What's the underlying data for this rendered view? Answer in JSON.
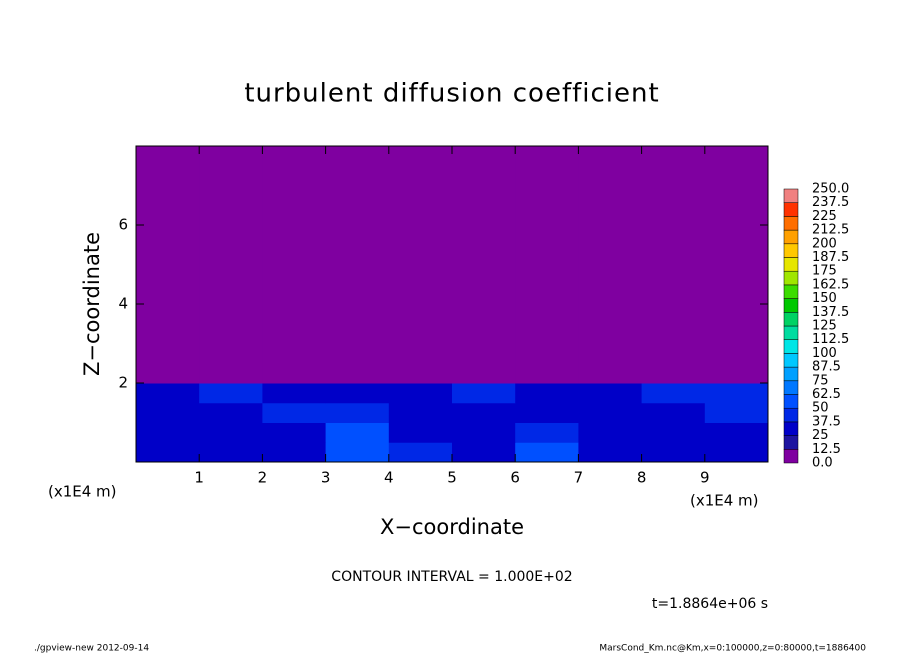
{
  "chart_data": {
    "type": "contour",
    "title": "turbulent diffusion coefficient",
    "x_label": "X−coordinate",
    "y_label": "Z−coordinate",
    "x_unit_left": "(x1E4 m)",
    "x_unit_right": "(x1E4 m)",
    "contour_note": "CONTOUR INTERVAL = 1.000E+02",
    "time_note": "t=1.8864e+06 s",
    "footer_left": "./gpview-new  2012-09-14",
    "footer_right": "MarsCond_Km.nc@Km,x=0:100000,z=0:80000,t=1886400",
    "xlim": [
      0,
      10
    ],
    "ylim": [
      0,
      8
    ],
    "xticks": [
      1,
      2,
      3,
      4,
      5,
      6,
      7,
      8,
      9
    ],
    "yticks": [
      2,
      4,
      6
    ],
    "x_edges": [
      0,
      1,
      2,
      3,
      4,
      5,
      6,
      7,
      8,
      9,
      10
    ],
    "y_edges": [
      0,
      0.5,
      1,
      1.5,
      2,
      8
    ],
    "z": [
      [
        30,
        25,
        28,
        55,
        40,
        30,
        50,
        28,
        25,
        30
      ],
      [
        28,
        30,
        35,
        50,
        30,
        28,
        38,
        25,
        30,
        32
      ],
      [
        25,
        35,
        40,
        38,
        28,
        35,
        35,
        28,
        35,
        40
      ],
      [
        30,
        40,
        30,
        25,
        30,
        38,
        30,
        25,
        45,
        38
      ],
      [
        0,
        0,
        0,
        0,
        0,
        0,
        0,
        0,
        0,
        0
      ]
    ],
    "levels": [
      {
        "value": 0,
        "label": "0.0"
      },
      12.5,
      25,
      37.5,
      50,
      62.5,
      75,
      87.5,
      100,
      112.5,
      125,
      137.5,
      150,
      162.5,
      175,
      187.5,
      200,
      212.5,
      225,
      237.5,
      {
        "value": 250,
        "label": "250.0"
      }
    ],
    "colors": [
      "#7f00a0",
      "#1e14a0",
      "#0000c8",
      "#0028e6",
      "#0050ff",
      "#0078ff",
      "#00a0ff",
      "#00c8ff",
      "#00e6e6",
      "#00dca0",
      "#00d264",
      "#00c800",
      "#3cdc00",
      "#a0e600",
      "#e6e600",
      "#ffc800",
      "#ffa000",
      "#ff6e00",
      "#ff3200",
      "#f08080"
    ]
  }
}
